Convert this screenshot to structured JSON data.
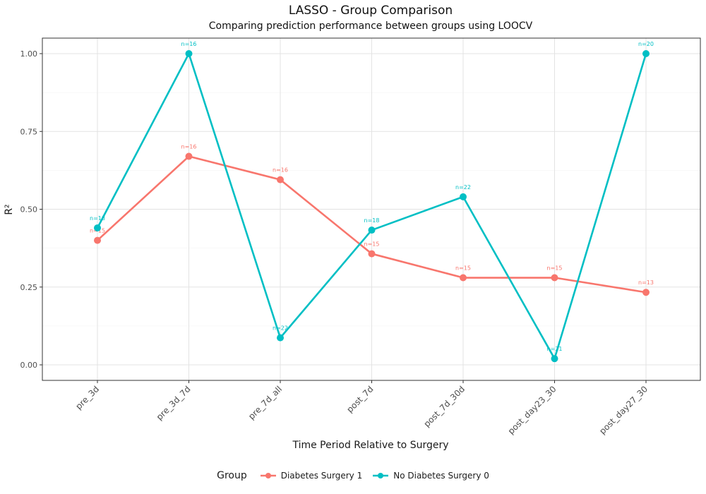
{
  "chart_data": {
    "type": "line",
    "title": "LASSO - Group Comparison",
    "subtitle": "Comparing prediction performance between groups using LOOCV",
    "xlabel": "Time Period Relative to Surgery",
    "ylabel": "R²",
    "categories": [
      "pre_3d",
      "pre_3d_7d",
      "pre_7d_all",
      "post_7d",
      "post_7d_30d",
      "post_day23_30",
      "post_day27_30"
    ],
    "ylim": [
      -0.05,
      1.05
    ],
    "yticks": [
      "0.00",
      "0.25",
      "0.50",
      "0.75",
      "1.00"
    ],
    "ytick_values": [
      0,
      0.25,
      0.5,
      0.75,
      1.0
    ],
    "grid": true,
    "legend_position": "bottom",
    "legend_title": "Group",
    "series": [
      {
        "name": "Diabetes Surgery 1",
        "color": "#F8766D",
        "values": [
          0.4,
          0.67,
          0.595,
          0.357,
          0.28,
          0.28,
          0.233
        ],
        "labels": [
          "n=15",
          "n=16",
          "n=16",
          "n=15",
          "n=15",
          "n=15",
          "n=13"
        ]
      },
      {
        "name": "No Diabetes Surgery 0",
        "color": "#00BFC4",
        "values": [
          0.44,
          1.0,
          0.087,
          0.433,
          0.54,
          0.02,
          1.0
        ],
        "labels": [
          "n=18",
          "n=16",
          "n=22",
          "n=18",
          "n=22",
          "n=21",
          "n=20"
        ]
      }
    ]
  }
}
